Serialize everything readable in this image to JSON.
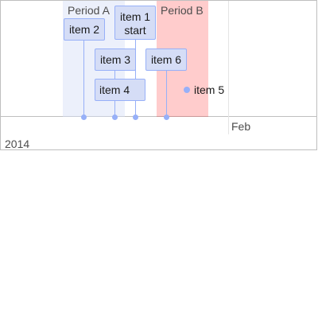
{
  "ranges": [
    {
      "label": "Period A"
    },
    {
      "label": "Period B"
    }
  ],
  "items": {
    "item1": {
      "line1": "item 1",
      "line2": "start"
    },
    "item2": {
      "label": "item 2"
    },
    "item3": {
      "label": "item 3"
    },
    "item4": {
      "label": "item 4"
    },
    "item5": {
      "label": "item 5"
    },
    "item6": {
      "label": "item 6"
    }
  },
  "axis": {
    "minor_label": "Feb",
    "major_label": "2014"
  },
  "colors": {
    "item_border": "#97b0f8",
    "item_fill": "#d5ddf6",
    "period_a_fill": "#d5ddf6",
    "period_b_fill": "#ffcccc"
  }
}
